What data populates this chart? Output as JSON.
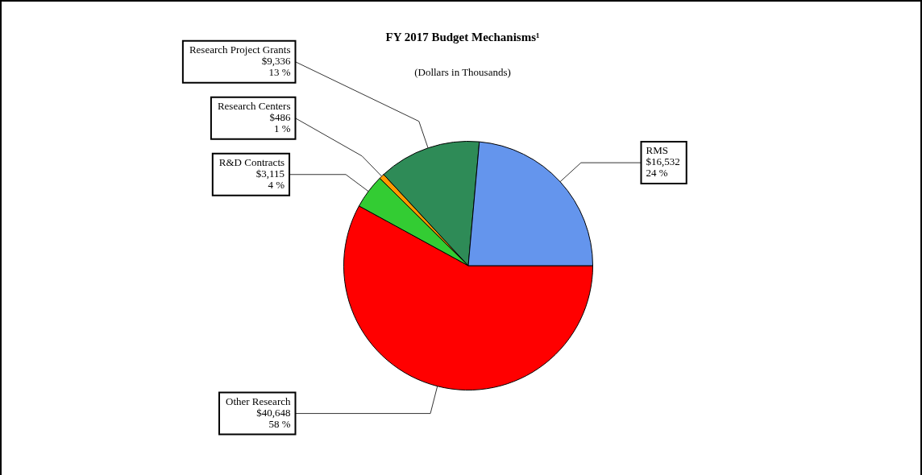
{
  "chart_data": {
    "type": "pie",
    "title": "FY 2017 Budget Mechanisms¹",
    "subtitle": "(Dollars in Thousands)",
    "categories": [
      "Other Research",
      "R&D Contracts",
      "Research Centers",
      "Research Project Grants",
      "RMS"
    ],
    "values": [
      40648,
      3115,
      486,
      9336,
      16532
    ],
    "colors": [
      "#ff0000",
      "#33cc33",
      "#ff9900",
      "#2e8b57",
      "#6495ed"
    ],
    "value_labels": [
      "$40,648\n58 %",
      "$3,115\n4 %",
      "$486\n1 %",
      "$9,336\n13 %",
      "$16,532\n24 %"
    ],
    "legend": false
  }
}
